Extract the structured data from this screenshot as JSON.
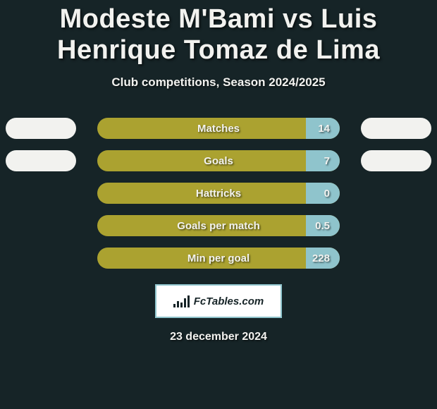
{
  "colors": {
    "bg": "#162427",
    "text": "#f2f2ef",
    "pill_main": "#aba230",
    "pill_cap": "#8fc4cc",
    "side_pill": "#f2f2ef",
    "badge_bg": "#ffffff",
    "badge_border": "#8fc4cc",
    "badge_fg": "#162427"
  },
  "typography": {
    "title_size": 38,
    "subtitle_size": 17,
    "label_size": 15,
    "value_size": 15,
    "date_size": 16,
    "badge_size": 15
  },
  "title": "Modeste M'Bami vs Luis Henrique Tomaz de Lima",
  "subtitle": "Club competitions, Season 2024/2025",
  "rows": [
    {
      "label": "Matches",
      "value": "14",
      "left_blank": true,
      "right_blank": true
    },
    {
      "label": "Goals",
      "value": "7",
      "left_blank": true,
      "right_blank": true
    },
    {
      "label": "Hattricks",
      "value": "0",
      "left_blank": false,
      "right_blank": false
    },
    {
      "label": "Goals per match",
      "value": "0.5",
      "left_blank": false,
      "right_blank": false
    },
    {
      "label": "Min per goal",
      "value": "228",
      "left_blank": false,
      "right_blank": false
    }
  ],
  "badge": {
    "text": "FcTables.com"
  },
  "date": "23 december 2024"
}
